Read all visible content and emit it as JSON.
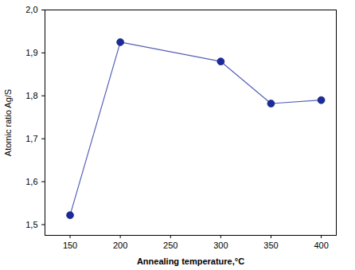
{
  "chart_data": {
    "type": "line",
    "x_label": "Annealing temperature,°C",
    "y_label": "Atomic ratio Ag/S",
    "x": [
      150,
      200,
      300,
      350,
      400
    ],
    "series": [
      {
        "color": "#1b2b9e",
        "marker": "circle",
        "line_style": "solid",
        "values": [
          1.522,
          1.925,
          1.88,
          1.782,
          1.79
        ]
      }
    ],
    "xlim": [
      125,
      415
    ],
    "xticks": [
      150,
      200,
      250,
      300,
      350,
      400
    ],
    "ylim": [
      1.475,
      2.0
    ],
    "yticks": [
      {
        "value": 1.5,
        "label": "1,5"
      },
      {
        "value": 1.6,
        "label": "1,6"
      },
      {
        "value": 1.7,
        "label": "1,7"
      },
      {
        "value": 1.8,
        "label": "1,8"
      },
      {
        "value": 1.9,
        "label": "1,9"
      },
      {
        "value": 2.0,
        "label": "2,0"
      }
    ],
    "grid": false
  }
}
